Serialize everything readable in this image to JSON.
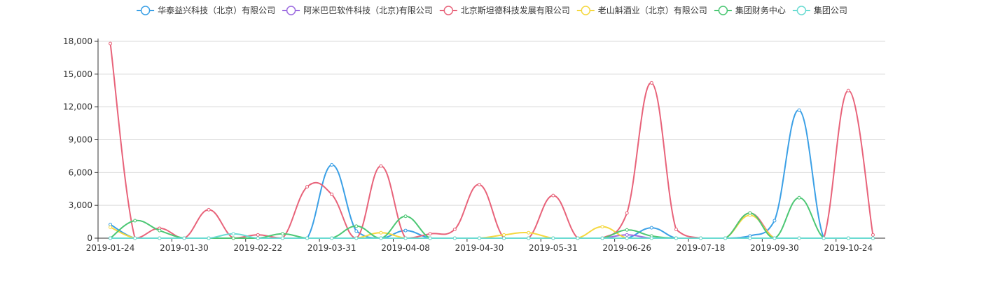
{
  "chart_data": {
    "type": "line",
    "title": "",
    "xlabel": "",
    "ylabel": "",
    "ylim": [
      0,
      18000
    ],
    "y_ticks": [
      0,
      3000,
      6000,
      9000,
      12000,
      15000,
      18000
    ],
    "y_tick_labels": [
      "0",
      "3,000",
      "6,000",
      "9,000",
      "12,000",
      "15,000",
      "18,000"
    ],
    "x_tick_labels": [
      "2019-01-24",
      "2019-01-30",
      "2019-02-22",
      "2019-03-31",
      "2019-04-08",
      "2019-04-30",
      "2019-05-31",
      "2019-06-26",
      "2019-07-18",
      "2019-09-30",
      "2019-10-24"
    ],
    "grid": true,
    "legend_position": "top",
    "point_count": 32,
    "series": [
      {
        "name": "华泰益兴科技（北京）有限公司",
        "color": "#3BA0E6",
        "values": [
          1250,
          0,
          0,
          0,
          0,
          0,
          0,
          0,
          0,
          6700,
          650,
          0,
          700,
          0,
          0,
          0,
          0,
          0,
          0,
          0,
          0,
          0,
          950,
          0,
          0,
          0,
          200,
          1600,
          11700,
          0,
          0,
          0
        ]
      },
      {
        "name": "阿米巴巴软件科技（北京)有限公司",
        "color": "#9D6CE0",
        "values": [
          0,
          0,
          0,
          0,
          0,
          0,
          0,
          0,
          0,
          0,
          0,
          0,
          0,
          0,
          0,
          0,
          0,
          0,
          0,
          0,
          0,
          300,
          0,
          0,
          0,
          0,
          0,
          0,
          0,
          0,
          0,
          0
        ]
      },
      {
        "name": "北京斯坦德科技发展有限公司",
        "color": "#E8637A",
        "values": [
          17800,
          0,
          900,
          0,
          2600,
          0,
          300,
          0,
          4700,
          4000,
          0,
          6600,
          0,
          400,
          800,
          4900,
          0,
          0,
          3900,
          0,
          0,
          2300,
          14200,
          800,
          0,
          0,
          2300,
          0,
          0,
          0,
          13500,
          300
        ]
      },
      {
        "name": "老山斛酒业（北京）有限公司",
        "color": "#F5D83F",
        "values": [
          1000,
          0,
          0,
          0,
          0,
          0,
          0,
          0,
          0,
          0,
          0,
          500,
          0,
          0,
          0,
          0,
          300,
          500,
          0,
          0,
          1050,
          0,
          0,
          0,
          0,
          0,
          2100,
          0,
          0,
          0,
          0,
          0
        ]
      },
      {
        "name": "集团财务中心",
        "color": "#4CC774",
        "values": [
          0,
          1600,
          700,
          0,
          0,
          0,
          0,
          400,
          0,
          0,
          1100,
          0,
          2000,
          0,
          0,
          0,
          0,
          0,
          0,
          0,
          0,
          750,
          200,
          0,
          0,
          0,
          2300,
          0,
          3700,
          0,
          0,
          0
        ]
      },
      {
        "name": "集团公司",
        "color": "#6ADBD2",
        "values": [
          0,
          0,
          0,
          0,
          0,
          400,
          0,
          0,
          0,
          0,
          0,
          0,
          0,
          0,
          0,
          0,
          0,
          0,
          0,
          0,
          0,
          0,
          0,
          0,
          0,
          0,
          0,
          0,
          0,
          0,
          0,
          0
        ]
      }
    ]
  }
}
